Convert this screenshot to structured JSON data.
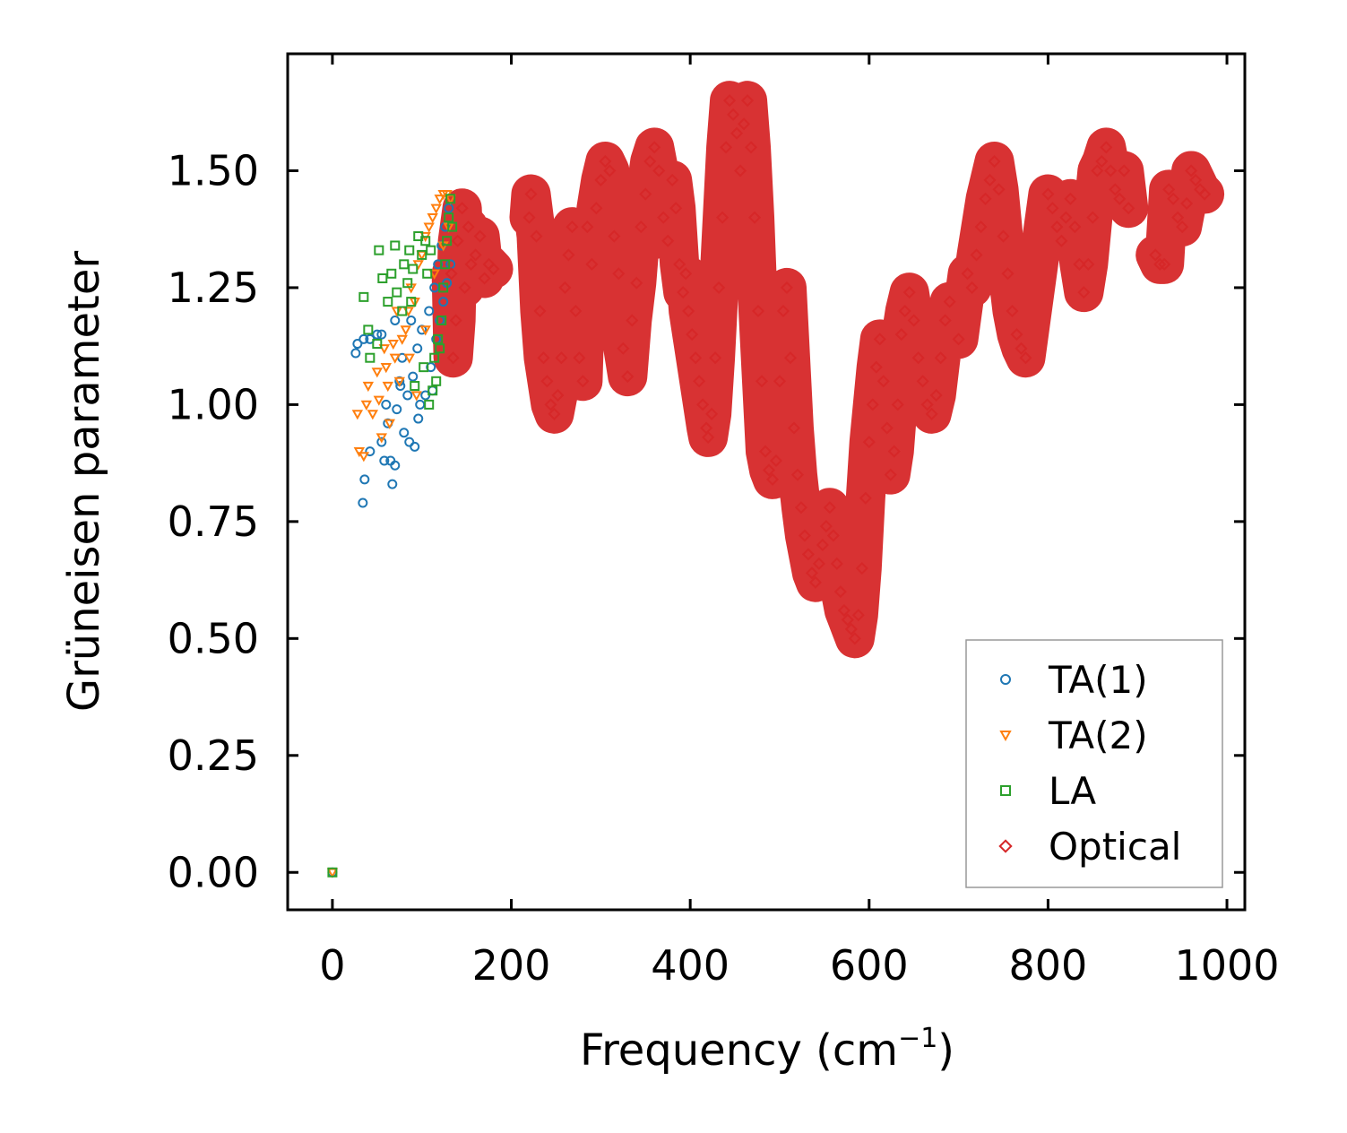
{
  "chart_data": {
    "type": "scatter",
    "xlabel": "Frequency (cm",
    "xlabel_sup": "−1",
    "xlabel_close": ")",
    "ylabel": "Grüneisen parameter",
    "xlim": [
      -50,
      1020
    ],
    "ylim": [
      -0.08,
      1.75
    ],
    "xticks": [
      0,
      200,
      400,
      600,
      800,
      1000
    ],
    "xtick_labels": [
      "0",
      "200",
      "400",
      "600",
      "800",
      "1000"
    ],
    "yticks": [
      0.0,
      0.25,
      0.5,
      0.75,
      1.0,
      1.25,
      1.5
    ],
    "ytick_labels": [
      "0.00",
      "0.25",
      "0.50",
      "0.75",
      "1.00",
      "1.25",
      "1.50"
    ],
    "legend_position": "bottom-right",
    "series": [
      {
        "name": "TA(1)",
        "marker": "circle",
        "color": "#1f77b4",
        "points": [
          [
            0,
            0
          ],
          [
            28,
            1.13
          ],
          [
            26,
            1.11
          ],
          [
            35,
            1.14
          ],
          [
            42,
            1.14
          ],
          [
            36,
            0.84
          ],
          [
            34,
            0.79
          ],
          [
            42,
            0.9
          ],
          [
            50,
            1.15
          ],
          [
            55,
            1.15
          ],
          [
            55,
            0.92
          ],
          [
            58,
            0.88
          ],
          [
            60,
            1.0
          ],
          [
            62,
            0.96
          ],
          [
            65,
            0.88
          ],
          [
            67,
            0.83
          ],
          [
            70,
            0.87
          ],
          [
            72,
            0.99
          ],
          [
            75,
            1.05
          ],
          [
            78,
            1.1
          ],
          [
            80,
            0.94
          ],
          [
            84,
            1.02
          ],
          [
            86,
            0.92
          ],
          [
            90,
            1.06
          ],
          [
            92,
            0.91
          ],
          [
            95,
            1.12
          ],
          [
            98,
            1.0
          ],
          [
            100,
            1.16
          ],
          [
            104,
            1.02
          ],
          [
            108,
            1.2
          ],
          [
            110,
            1.08
          ],
          [
            114,
            1.25
          ],
          [
            116,
            1.14
          ],
          [
            118,
            1.3
          ],
          [
            120,
            1.18
          ],
          [
            122,
            1.34
          ],
          [
            124,
            1.22
          ],
          [
            126,
            1.38
          ],
          [
            128,
            1.26
          ],
          [
            130,
            1.42
          ],
          [
            132,
            1.3
          ],
          [
            96,
            0.97
          ],
          [
            88,
            1.18
          ],
          [
            70,
            1.18
          ],
          [
            76,
            1.04
          ],
          [
            112,
            1.03
          ]
        ]
      },
      {
        "name": "TA(2)",
        "marker": "triangle",
        "color": "#ff7f0e",
        "points": [
          [
            0,
            0
          ],
          [
            28,
            0.98
          ],
          [
            30,
            0.9
          ],
          [
            35,
            0.89
          ],
          [
            38,
            1.0
          ],
          [
            40,
            1.04
          ],
          [
            45,
            0.98
          ],
          [
            50,
            1.07
          ],
          [
            52,
            1.01
          ],
          [
            55,
            0.93
          ],
          [
            58,
            1.12
          ],
          [
            60,
            1.08
          ],
          [
            62,
            1.04
          ],
          [
            64,
            0.96
          ],
          [
            68,
            1.13
          ],
          [
            70,
            1.1
          ],
          [
            72,
            1.2
          ],
          [
            75,
            1.05
          ],
          [
            78,
            1.14
          ],
          [
            82,
            1.16
          ],
          [
            85,
            1.2
          ],
          [
            88,
            1.25
          ],
          [
            92,
            1.22
          ],
          [
            96,
            1.3
          ],
          [
            100,
            1.32
          ],
          [
            104,
            1.36
          ],
          [
            108,
            1.38
          ],
          [
            112,
            1.4
          ],
          [
            116,
            1.42
          ],
          [
            120,
            1.44
          ],
          [
            124,
            1.45
          ],
          [
            128,
            1.45
          ],
          [
            132,
            1.44
          ],
          [
            86,
            1.1
          ],
          [
            94,
            1.02
          ],
          [
            104,
            1.16
          ],
          [
            114,
            1.28
          ],
          [
            124,
            1.34
          ],
          [
            130,
            1.38
          ]
        ]
      },
      {
        "name": "LA",
        "marker": "square",
        "color": "#2ca02c",
        "points": [
          [
            0,
            0
          ],
          [
            35,
            1.23
          ],
          [
            40,
            1.16
          ],
          [
            42,
            1.1
          ],
          [
            50,
            1.13
          ],
          [
            52,
            1.33
          ],
          [
            56,
            1.27
          ],
          [
            62,
            1.22
          ],
          [
            66,
            1.28
          ],
          [
            70,
            1.34
          ],
          [
            72,
            1.24
          ],
          [
            78,
            1.2
          ],
          [
            80,
            1.3
          ],
          [
            84,
            1.26
          ],
          [
            86,
            1.33
          ],
          [
            88,
            1.22
          ],
          [
            90,
            1.29
          ],
          [
            96,
            1.36
          ],
          [
            100,
            1.32
          ],
          [
            104,
            1.35
          ],
          [
            106,
            1.28
          ],
          [
            110,
            1.33
          ],
          [
            112,
            1.03
          ],
          [
            114,
            1.1
          ],
          [
            116,
            1.05
          ],
          [
            118,
            1.14
          ],
          [
            120,
            1.12
          ],
          [
            122,
            1.18
          ],
          [
            124,
            1.25
          ],
          [
            126,
            1.3
          ],
          [
            128,
            1.35
          ],
          [
            130,
            1.4
          ],
          [
            132,
            1.44
          ],
          [
            134,
            1.38
          ],
          [
            92,
            1.04
          ],
          [
            102,
            1.08
          ],
          [
            108,
            1.0
          ]
        ]
      },
      {
        "name": "Optical",
        "marker": "diamond",
        "color": "#d62728",
        "points": [
          [
            133,
            1.28
          ],
          [
            135,
            1.1
          ],
          [
            138,
            1.18
          ],
          [
            140,
            1.35
          ],
          [
            145,
            1.42
          ],
          [
            148,
            1.25
          ],
          [
            152,
            1.38
          ],
          [
            155,
            1.3
          ],
          [
            160,
            1.32
          ],
          [
            165,
            1.36
          ],
          [
            170,
            1.27
          ],
          [
            175,
            1.3
          ],
          [
            180,
            1.29
          ],
          [
            222,
            1.45
          ],
          [
            220,
            1.4
          ],
          [
            228,
            1.36
          ],
          [
            232,
            1.2
          ],
          [
            236,
            1.1
          ],
          [
            240,
            1.05
          ],
          [
            244,
            1.0
          ],
          [
            248,
            0.98
          ],
          [
            252,
            1.02
          ],
          [
            256,
            1.1
          ],
          [
            260,
            1.25
          ],
          [
            264,
            1.32
          ],
          [
            268,
            1.38
          ],
          [
            272,
            1.2
          ],
          [
            276,
            1.1
          ],
          [
            280,
            1.05
          ],
          [
            285,
            1.38
          ],
          [
            290,
            1.3
          ],
          [
            295,
            1.42
          ],
          [
            300,
            1.48
          ],
          [
            305,
            1.52
          ],
          [
            310,
            1.5
          ],
          [
            315,
            1.36
          ],
          [
            320,
            1.28
          ],
          [
            325,
            1.12
          ],
          [
            330,
            1.06
          ],
          [
            335,
            1.18
          ],
          [
            340,
            1.26
          ],
          [
            345,
            1.38
          ],
          [
            350,
            1.45
          ],
          [
            355,
            1.52
          ],
          [
            360,
            1.55
          ],
          [
            365,
            1.5
          ],
          [
            370,
            1.4
          ],
          [
            375,
            1.35
          ],
          [
            380,
            1.48
          ],
          [
            384,
            1.42
          ],
          [
            388,
            1.3
          ],
          [
            392,
            1.24
          ],
          [
            395,
            1.28
          ],
          [
            398,
            1.2
          ],
          [
            402,
            1.15
          ],
          [
            406,
            1.1
          ],
          [
            410,
            1.05
          ],
          [
            414,
            1.0
          ],
          [
            418,
            0.95
          ],
          [
            420,
            0.93
          ],
          [
            424,
            0.98
          ],
          [
            428,
            1.1
          ],
          [
            432,
            1.25
          ],
          [
            436,
            1.4
          ],
          [
            440,
            1.55
          ],
          [
            444,
            1.65
          ],
          [
            448,
            1.62
          ],
          [
            452,
            1.58
          ],
          [
            456,
            1.5
          ],
          [
            460,
            1.6
          ],
          [
            464,
            1.65
          ],
          [
            468,
            1.55
          ],
          [
            472,
            1.4
          ],
          [
            476,
            1.2
          ],
          [
            480,
            1.05
          ],
          [
            484,
            0.9
          ],
          [
            488,
            0.86
          ],
          [
            492,
            0.84
          ],
          [
            496,
            0.88
          ],
          [
            500,
            1.05
          ],
          [
            504,
            1.2
          ],
          [
            508,
            1.25
          ],
          [
            512,
            1.1
          ],
          [
            516,
            0.95
          ],
          [
            520,
            0.85
          ],
          [
            524,
            0.78
          ],
          [
            528,
            0.72
          ],
          [
            532,
            0.68
          ],
          [
            536,
            0.64
          ],
          [
            540,
            0.62
          ],
          [
            544,
            0.66
          ],
          [
            548,
            0.7
          ],
          [
            552,
            0.74
          ],
          [
            556,
            0.78
          ],
          [
            560,
            0.72
          ],
          [
            564,
            0.66
          ],
          [
            568,
            0.6
          ],
          [
            572,
            0.56
          ],
          [
            576,
            0.54
          ],
          [
            580,
            0.52
          ],
          [
            584,
            0.5
          ],
          [
            588,
            0.55
          ],
          [
            592,
            0.65
          ],
          [
            596,
            0.8
          ],
          [
            600,
            0.92
          ],
          [
            604,
            1.0
          ],
          [
            608,
            1.08
          ],
          [
            612,
            1.14
          ],
          [
            616,
            1.05
          ],
          [
            620,
            0.95
          ],
          [
            624,
            0.85
          ],
          [
            628,
            0.9
          ],
          [
            632,
            1.0
          ],
          [
            636,
            1.15
          ],
          [
            640,
            1.2
          ],
          [
            645,
            1.24
          ],
          [
            650,
            1.18
          ],
          [
            655,
            1.1
          ],
          [
            660,
            1.05
          ],
          [
            665,
            1.0
          ],
          [
            670,
            0.98
          ],
          [
            675,
            1.02
          ],
          [
            680,
            1.1
          ],
          [
            685,
            1.18
          ],
          [
            690,
            1.22
          ],
          [
            700,
            1.14
          ],
          [
            710,
            1.28
          ],
          [
            715,
            1.25
          ],
          [
            720,
            1.32
          ],
          [
            725,
            1.38
          ],
          [
            730,
            1.44
          ],
          [
            735,
            1.48
          ],
          [
            740,
            1.52
          ],
          [
            745,
            1.46
          ],
          [
            750,
            1.36
          ],
          [
            755,
            1.28
          ],
          [
            760,
            1.2
          ],
          [
            765,
            1.15
          ],
          [
            770,
            1.12
          ],
          [
            775,
            1.1
          ],
          [
            800,
            1.45
          ],
          [
            805,
            1.42
          ],
          [
            810,
            1.38
          ],
          [
            815,
            1.35
          ],
          [
            820,
            1.4
          ],
          [
            825,
            1.44
          ],
          [
            830,
            1.38
          ],
          [
            835,
            1.3
          ],
          [
            840,
            1.24
          ],
          [
            845,
            1.3
          ],
          [
            850,
            1.4
          ],
          [
            855,
            1.5
          ],
          [
            860,
            1.52
          ],
          [
            865,
            1.55
          ],
          [
            870,
            1.5
          ],
          [
            875,
            1.46
          ],
          [
            880,
            1.44
          ],
          [
            885,
            1.5
          ],
          [
            890,
            1.42
          ],
          [
            920,
            1.32
          ],
          [
            925,
            1.3
          ],
          [
            930,
            1.3
          ],
          [
            935,
            1.46
          ],
          [
            940,
            1.44
          ],
          [
            945,
            1.4
          ],
          [
            950,
            1.38
          ],
          [
            955,
            1.43
          ],
          [
            960,
            1.5
          ],
          [
            965,
            1.48
          ],
          [
            970,
            1.46
          ],
          [
            975,
            1.45
          ]
        ]
      }
    ]
  }
}
